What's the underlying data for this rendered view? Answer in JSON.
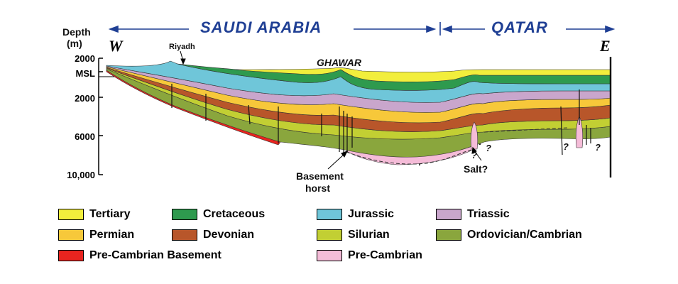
{
  "header": {
    "left_country": "SAUDI ARABIA",
    "right_country": "QATAR"
  },
  "axis": {
    "title_line1": "Depth",
    "title_line2": "(m)",
    "ticks": [
      "2000",
      "MSL",
      "2000",
      "6000",
      "10,000"
    ]
  },
  "directions": {
    "west": "W",
    "east": "E"
  },
  "annotations": {
    "city": "Riyadh",
    "field": "GHAWAR",
    "basement_line1": "Basement",
    "basement_line2": "horst",
    "salt": "Salt?",
    "question": "?"
  },
  "legend": [
    {
      "label": "Tertiary",
      "color": "#f2ee3c"
    },
    {
      "label": "Cretaceous",
      "color": "#2e9a4e"
    },
    {
      "label": "Jurassic",
      "color": "#6fc6d9"
    },
    {
      "label": "Triassic",
      "color": "#c9a6cc"
    },
    {
      "label": "Permian",
      "color": "#f7c83a"
    },
    {
      "label": "Devonian",
      "color": "#b8562a"
    },
    {
      "label": "Silurian",
      "color": "#c2cf33"
    },
    {
      "label": "Ordovician/Cambrian",
      "color": "#8aa63d"
    },
    {
      "label": "Pre-Cambrian Basement",
      "color": "#e8241f"
    },
    {
      "label": "Pre-Cambrian",
      "color": "#f5bcd8"
    }
  ],
  "colors": {
    "header_text": "#1f3f94",
    "header_arrow": "#1f3f94"
  }
}
